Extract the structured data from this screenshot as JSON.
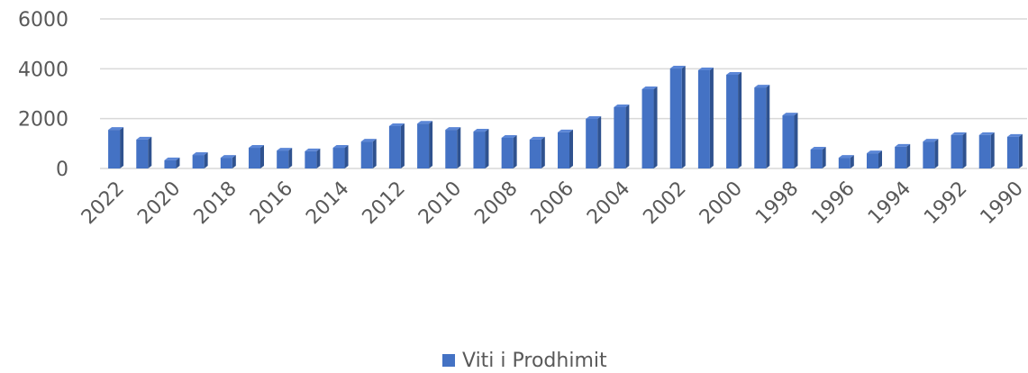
{
  "chart_data": {
    "type": "bar",
    "categories": [
      "2022",
      null,
      "2020",
      null,
      "2018",
      null,
      "2016",
      null,
      "2014",
      null,
      "2012",
      null,
      "2010",
      null,
      "2008",
      null,
      "2006",
      null,
      "2004",
      null,
      "2002",
      null,
      "2000",
      null,
      "1998",
      null,
      "1996",
      null,
      "1994",
      null,
      "1992",
      null,
      "1990"
    ],
    "series": [
      {
        "name": "Viti i Prodhimit",
        "color": "#4472c4",
        "values": [
          1550,
          1160,
          330,
          540,
          430,
          830,
          720,
          690,
          830,
          1080,
          1700,
          1800,
          1550,
          1480,
          1230,
          1160,
          1450,
          1990,
          2460,
          3180,
          4010,
          3940,
          3760,
          3250,
          2130,
          760,
          430,
          610,
          870,
          1080,
          1340,
          1340,
          1270
        ]
      }
    ],
    "ylim": [
      0,
      6000
    ],
    "yticks": [
      0,
      2000,
      4000,
      6000
    ],
    "grid": true,
    "legend": "bottom"
  }
}
